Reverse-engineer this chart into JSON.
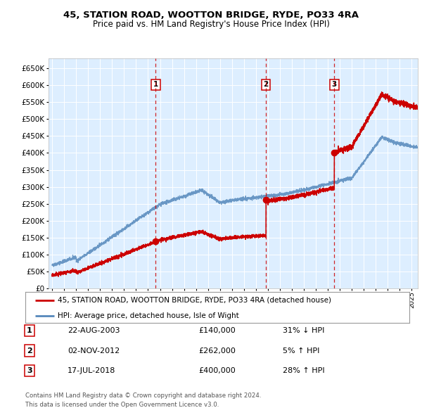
{
  "title_line1": "45, STATION ROAD, WOOTTON BRIDGE, RYDE, PO33 4RA",
  "title_line2": "Price paid vs. HM Land Registry's House Price Index (HPI)",
  "legend_label_red": "45, STATION ROAD, WOOTTON BRIDGE, RYDE, PO33 4RA (detached house)",
  "legend_label_blue": "HPI: Average price, detached house, Isle of Wight",
  "footer_line1": "Contains HM Land Registry data © Crown copyright and database right 2024.",
  "footer_line2": "This data is licensed under the Open Government Licence v3.0.",
  "sale_events": [
    {
      "num": 1,
      "date": "22-AUG-2003",
      "price": 140000,
      "pct": "31%",
      "dir": "↓",
      "x_year": 2003.64
    },
    {
      "num": 2,
      "date": "02-NOV-2012",
      "price": 262000,
      "pct": "5%",
      "dir": "↑",
      "x_year": 2012.84
    },
    {
      "num": 3,
      "date": "17-JUL-2018",
      "price": 400000,
      "pct": "28%",
      "dir": "↑",
      "x_year": 2018.54
    }
  ],
  "ylabel_ticks": [
    0,
    50000,
    100000,
    150000,
    200000,
    250000,
    300000,
    350000,
    400000,
    450000,
    500000,
    550000,
    600000,
    650000
  ],
  "ylim": [
    0,
    680000
  ],
  "xlim_start": 1994.7,
  "xlim_end": 2025.5,
  "background_color": "#ddeeff",
  "red_color": "#cc0000",
  "blue_color": "#5588bb",
  "grid_color": "#ffffff"
}
